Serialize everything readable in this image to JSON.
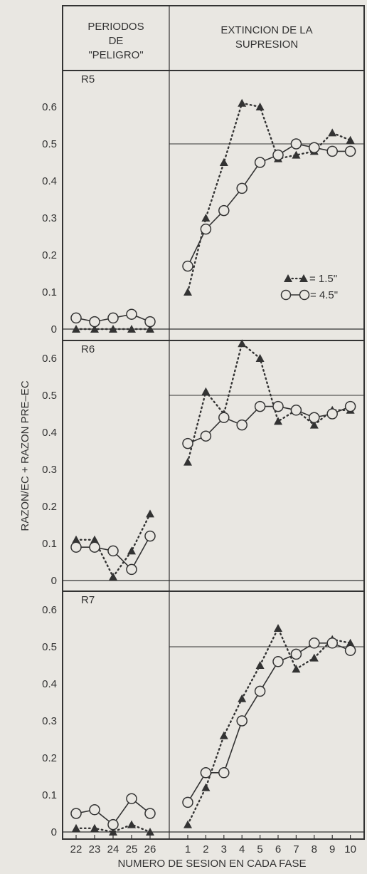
{
  "header": {
    "left": [
      "PERIODOS",
      "DE",
      "\"PELIGRO\""
    ],
    "right": [
      "EXTINCION DE LA",
      "SUPRESION"
    ]
  },
  "ylabel": "RAZON/EC + RAZON PRE–EC",
  "xlabel": "NUMERO DE SESION EN CADA FASE",
  "x_ticks_left": [
    "22",
    "23",
    "24",
    "25",
    "26"
  ],
  "x_ticks_right": [
    "1",
    "2",
    "3",
    "4",
    "5",
    "6",
    "7",
    "8",
    "9",
    "10"
  ],
  "legend": [
    {
      "label": "= 1.5\"",
      "marker": "triangle",
      "line": "dotted"
    },
    {
      "label": "= 4.5\"",
      "marker": "circle",
      "line": "solid"
    }
  ],
  "colors": {
    "ink": "#333333",
    "background": "#e9e7e2"
  },
  "chart_data": [
    {
      "type": "line",
      "panel": "R5",
      "ylim": [
        0,
        0.65
      ],
      "y_ticks": [
        "0",
        "0.1",
        "0.2",
        "0.3",
        "0.4",
        "0.5",
        "0.6"
      ],
      "reference_line": 0.5,
      "series": [
        {
          "name": "1.5\"",
          "peligro": [
            0.0,
            0.0,
            0.0,
            0.0,
            0.0
          ],
          "extincion": [
            0.1,
            0.3,
            0.45,
            0.61,
            0.6,
            0.46,
            0.47,
            0.48,
            0.53,
            0.51
          ]
        },
        {
          "name": "4.5\"",
          "peligro": [
            0.03,
            0.02,
            0.03,
            0.04,
            0.02
          ],
          "extincion": [
            0.17,
            0.27,
            0.32,
            0.38,
            0.45,
            0.47,
            0.5,
            0.49,
            0.48,
            0.48
          ]
        }
      ]
    },
    {
      "type": "line",
      "panel": "R6",
      "ylim": [
        0,
        0.65
      ],
      "y_ticks": [
        "0",
        "0.1",
        "0.2",
        "0.3",
        "0.4",
        "0.5",
        "0.6"
      ],
      "reference_line": 0.5,
      "series": [
        {
          "name": "1.5\"",
          "peligro": [
            0.11,
            0.11,
            0.01,
            0.08,
            0.18
          ],
          "extincion": [
            0.32,
            0.51,
            0.45,
            0.64,
            0.6,
            0.43,
            0.46,
            0.42,
            0.46,
            0.46
          ]
        },
        {
          "name": "4.5\"",
          "peligro": [
            0.09,
            0.09,
            0.08,
            0.03,
            0.12
          ],
          "extincion": [
            0.37,
            0.39,
            0.44,
            0.42,
            0.47,
            0.47,
            0.46,
            0.44,
            0.45,
            0.47
          ]
        }
      ]
    },
    {
      "type": "line",
      "panel": "R7",
      "ylim": [
        0,
        0.65
      ],
      "y_ticks": [
        "0",
        "0.1",
        "0.2",
        "0.3",
        "0.4",
        "0.5",
        "0.6"
      ],
      "reference_line": 0.5,
      "series": [
        {
          "name": "1.5\"",
          "peligro": [
            0.01,
            0.01,
            0.0,
            0.02,
            0.0
          ],
          "extincion": [
            0.02,
            0.12,
            0.26,
            0.36,
            0.45,
            0.55,
            0.44,
            0.47,
            0.52,
            0.51
          ]
        },
        {
          "name": "4.5\"",
          "peligro": [
            0.05,
            0.06,
            0.02,
            0.09,
            0.05
          ],
          "extincion": [
            0.08,
            0.16,
            0.16,
            0.3,
            0.38,
            0.46,
            0.48,
            0.51,
            0.51,
            0.49
          ]
        }
      ]
    }
  ]
}
